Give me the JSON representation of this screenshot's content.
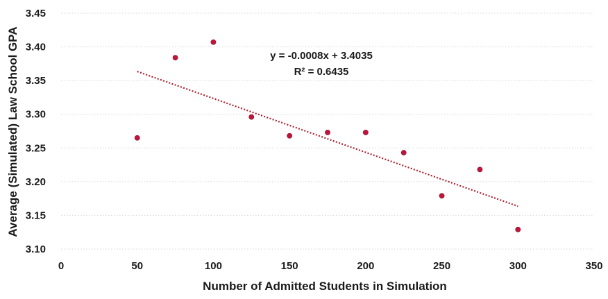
{
  "chart_data": {
    "type": "scatter",
    "xlabel": "Number of Admitted Students in Simulation",
    "ylabel": "Average (Simulated) Law School GPA",
    "xlim": [
      0,
      350
    ],
    "ylim": [
      3.1,
      3.45
    ],
    "x_ticks": [
      "0",
      "50",
      "100",
      "150",
      "200",
      "250",
      "300",
      "350"
    ],
    "y_ticks": [
      "3.10",
      "3.15",
      "3.20",
      "3.25",
      "3.30",
      "3.35",
      "3.40",
      "3.45"
    ],
    "grid": "horizontal dotted",
    "marker_color": "#c0143c",
    "trendline_color": "#b0202e",
    "series": [
      {
        "x": [
          50,
          75,
          100,
          125,
          150,
          175,
          200,
          225,
          250,
          275,
          300
        ],
        "y": [
          3.265,
          3.384,
          3.407,
          3.296,
          3.268,
          3.273,
          3.273,
          3.243,
          3.179,
          3.218,
          3.129
        ]
      }
    ],
    "trendline": {
      "type": "linear",
      "slope": -0.0008,
      "intercept": 3.4035,
      "x_range": [
        50,
        300
      ],
      "equation": "y = -0.0008x + 3.4035",
      "r_squared": "R² = 0.6435"
    }
  }
}
